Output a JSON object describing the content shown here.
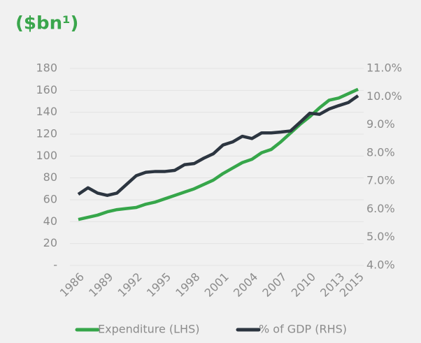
{
  "chart_data": {
    "type": "line",
    "title": "($bn¹)",
    "x": [
      1986,
      1987,
      1988,
      1989,
      1990,
      1991,
      1992,
      1993,
      1994,
      1995,
      1996,
      1997,
      1998,
      1999,
      2000,
      2001,
      2002,
      2003,
      2004,
      2005,
      2006,
      2007,
      2008,
      2009,
      2010,
      2011,
      2012,
      2013,
      2014,
      2015
    ],
    "xlim": [
      1986,
      2015
    ],
    "xticks": [
      1986,
      1989,
      1992,
      1995,
      1998,
      2001,
      2004,
      2007,
      2010,
      2013,
      2015
    ],
    "ylim": [
      0,
      180
    ],
    "yticks": [
      {
        "value": 0,
        "label": "-"
      },
      20,
      40,
      60,
      80,
      100,
      120,
      140,
      160,
      180
    ],
    "y2lim": [
      4,
      11
    ],
    "y2ticks": [
      {
        "value": 4,
        "label": "4.0%"
      },
      {
        "value": 5,
        "label": "5.0%"
      },
      {
        "value": 6,
        "label": "6.0%"
      },
      {
        "value": 7,
        "label": "7.0%"
      },
      {
        "value": 8,
        "label": "8.0%"
      },
      {
        "value": 9,
        "label": "9.0%"
      },
      {
        "value": 10,
        "label": "10.0%"
      },
      {
        "value": 11,
        "label": "11.0%"
      }
    ],
    "grid": true,
    "legend": "bottom",
    "series": [
      {
        "name": "Expenditure (LHS)",
        "color": "#36a64a",
        "values": [
          42,
          44,
          46,
          49,
          51,
          52,
          53,
          56,
          58,
          61,
          64,
          67,
          70,
          74,
          78,
          84,
          89,
          94,
          97,
          103,
          106,
          113,
          121,
          129,
          136,
          144,
          151,
          153,
          157,
          161
        ]
      },
      {
        "name": "% of GDP (RHS)",
        "color": "#2c3540",
        "axis": "y2",
        "values": [
          6.53,
          6.76,
          6.57,
          6.49,
          6.57,
          6.88,
          7.19,
          7.31,
          7.34,
          7.34,
          7.38,
          7.58,
          7.62,
          7.81,
          7.97,
          8.28,
          8.39,
          8.59,
          8.51,
          8.71,
          8.71,
          8.74,
          8.78,
          9.09,
          9.41,
          9.37,
          9.56,
          9.68,
          9.79,
          10.03
        ]
      }
    ]
  }
}
